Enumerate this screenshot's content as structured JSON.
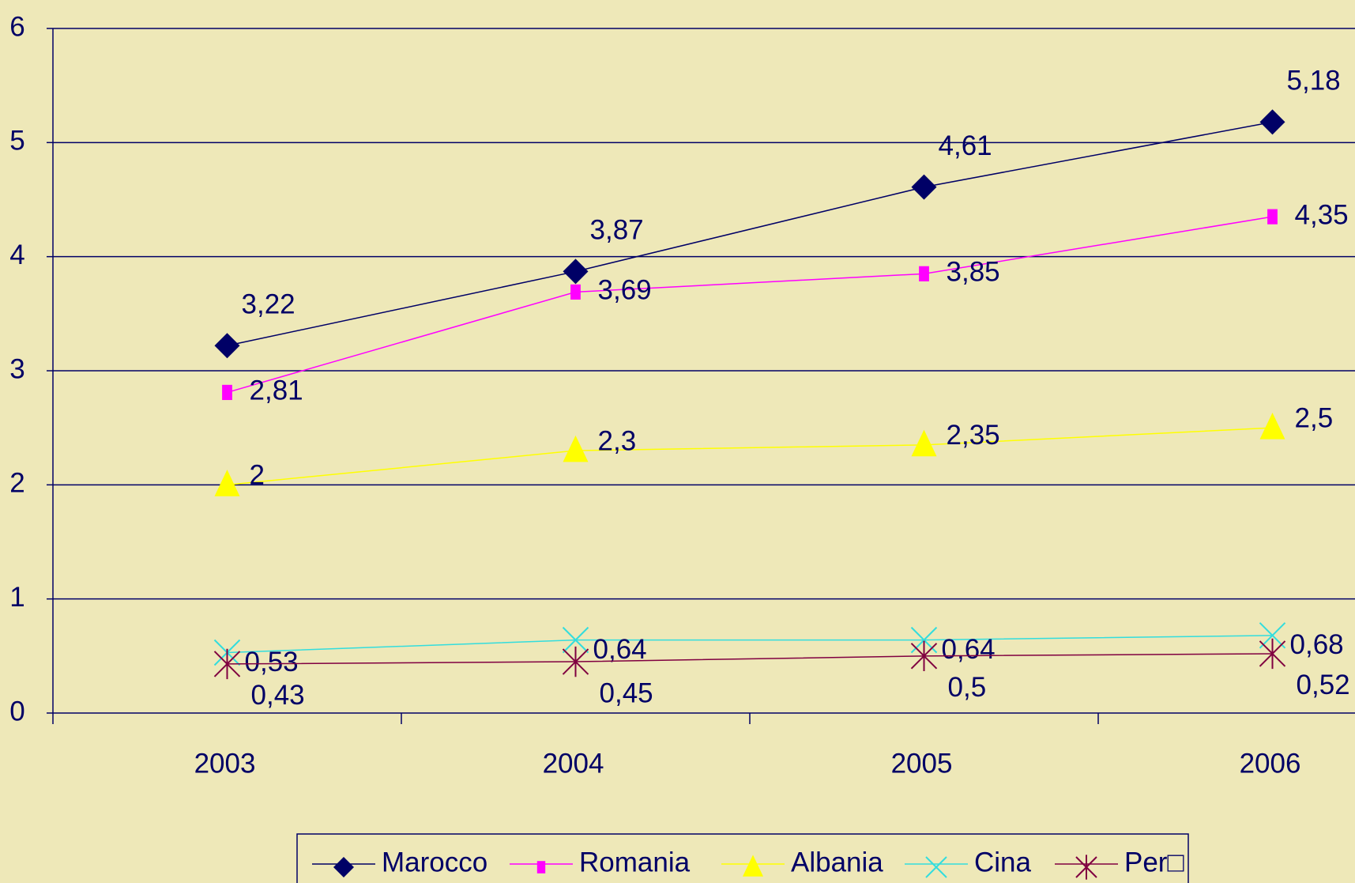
{
  "chart_data": {
    "type": "line",
    "categories": [
      "2003",
      "2004",
      "2005",
      "2006"
    ],
    "ylim": [
      0,
      6
    ],
    "yticks": [
      0,
      1,
      2,
      3,
      4,
      5,
      6
    ],
    "grid": true,
    "legend": "bottom",
    "series": [
      {
        "name": "Marocco",
        "color": "#000066",
        "marker": "diamond",
        "values": [
          3.22,
          3.87,
          4.61,
          5.18
        ],
        "value_labels": [
          "3,22",
          "3,87",
          "4,61",
          "5,18"
        ]
      },
      {
        "name": "Romania",
        "color": "#ff00ff",
        "marker": "square",
        "values": [
          2.81,
          3.69,
          3.85,
          4.35
        ],
        "value_labels": [
          "2,81",
          "3,69",
          "3,85",
          "4,35"
        ]
      },
      {
        "name": "Albania",
        "color": "#ffff00",
        "marker": "triangle",
        "values": [
          2,
          2.3,
          2.35,
          2.5
        ],
        "value_labels": [
          "2",
          "2,3",
          "2,35",
          "2,5"
        ]
      },
      {
        "name": "Cina",
        "color": "#33dddd",
        "marker": "x",
        "values": [
          0.53,
          0.64,
          0.64,
          0.68
        ],
        "value_labels": [
          "0,53",
          "0,64",
          "0,64",
          "0,68"
        ]
      },
      {
        "name": "Per□",
        "color": "#800040",
        "marker": "star",
        "values": [
          0.43,
          0.45,
          0.5,
          0.52
        ],
        "value_labels": [
          "0,43",
          "0,45",
          "0,5",
          "0,52"
        ]
      }
    ]
  }
}
